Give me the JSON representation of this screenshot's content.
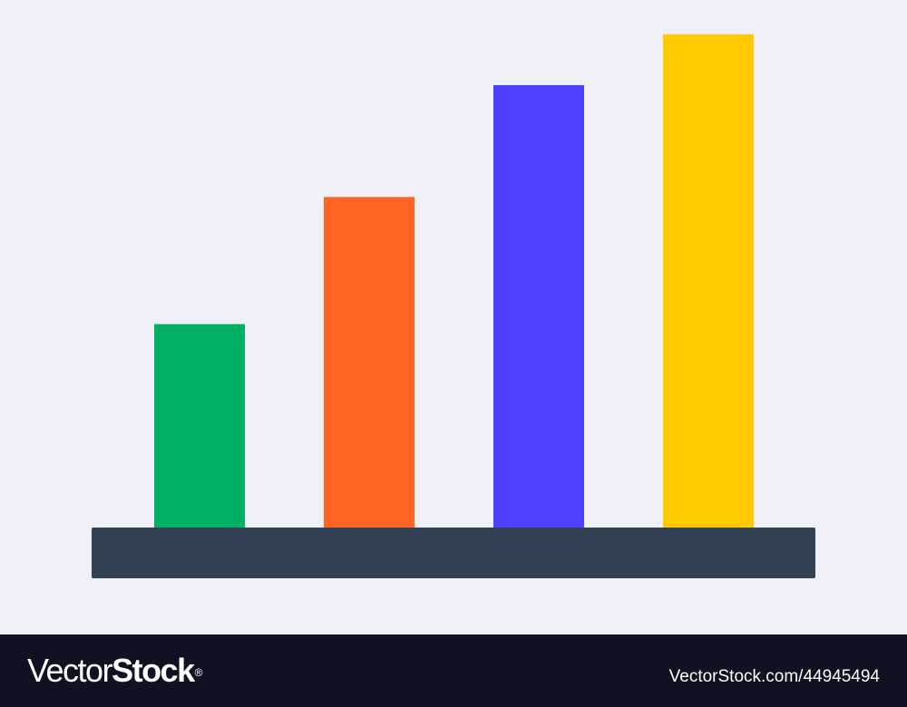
{
  "chart_data": {
    "type": "bar",
    "categories": [
      "",
      "",
      "",
      ""
    ],
    "values": [
      40,
      65,
      87,
      97
    ],
    "ylim": [
      0,
      100
    ],
    "title": "",
    "xlabel": "",
    "ylabel": "",
    "grid": false,
    "legend": "none",
    "bar_colors": [
      "#00b062",
      "#ff6422",
      "#4f40ff",
      "#ffcb00"
    ],
    "baseline_color": "#334155",
    "background_color": "#eff0f8"
  },
  "footer": {
    "brand_part1": "Vector",
    "brand_part2": "Stock",
    "brand_mark": "®",
    "image_id": "VectorStock.com/44945494",
    "background_color": "#0f1222"
  }
}
